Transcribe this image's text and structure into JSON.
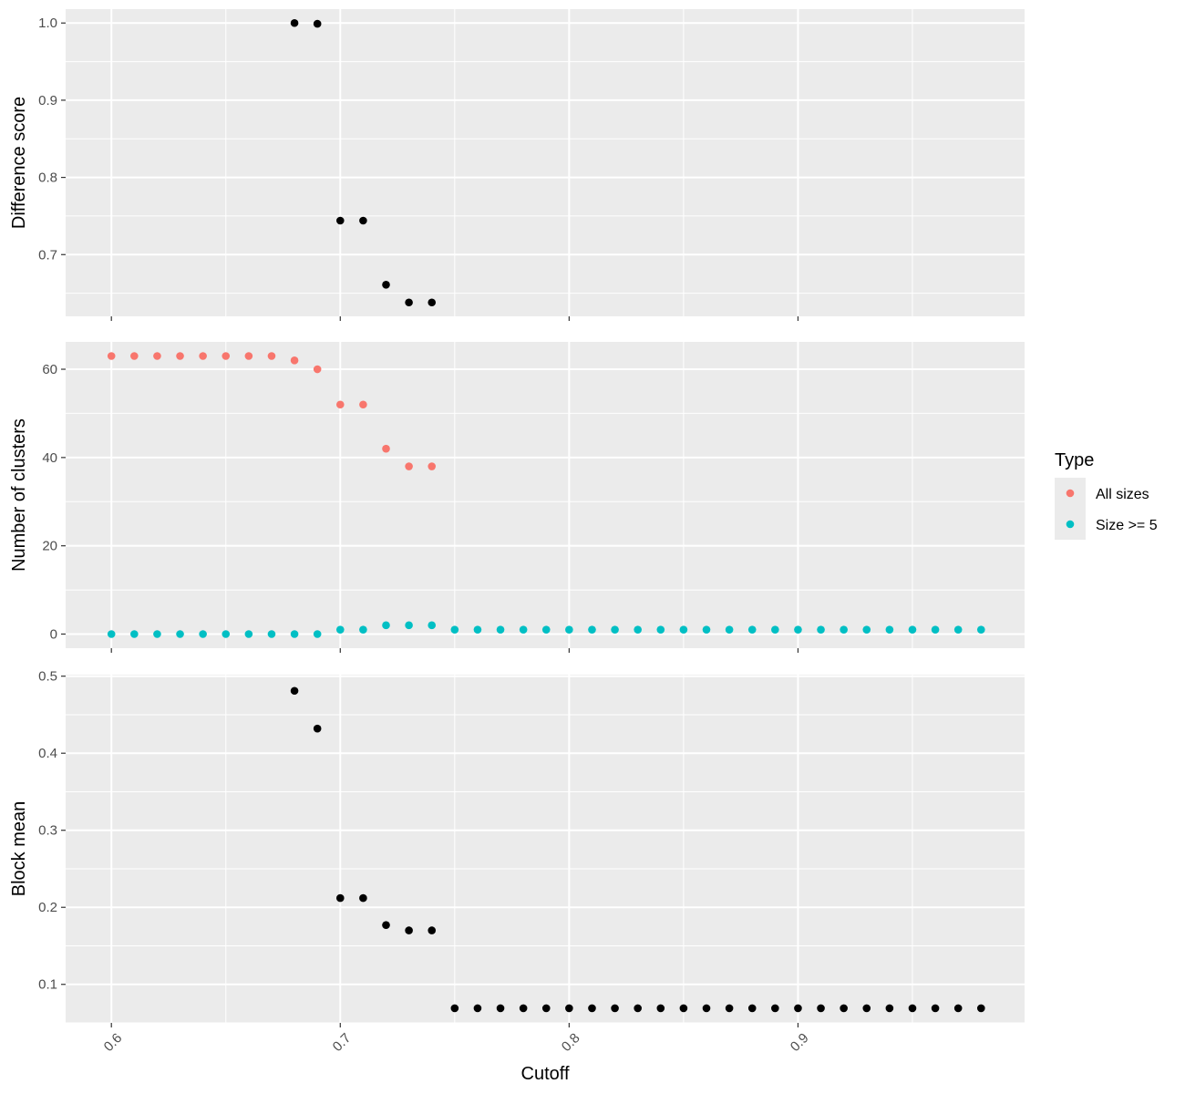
{
  "chart_data": [
    {
      "type": "scatter",
      "ylabel": "Difference score",
      "xlim": [
        0.58,
        0.999
      ],
      "ylim": [
        0.62,
        1.018
      ],
      "yticks": [
        0.7,
        0.8,
        0.9,
        1.0
      ],
      "ytick_labels": [
        "0.7",
        "0.8",
        "0.9",
        "1.0"
      ],
      "grid": true,
      "series": [
        {
          "color": "#000000",
          "x": [
            0.68,
            0.69,
            0.7,
            0.71,
            0.72,
            0.73,
            0.74
          ],
          "y": [
            1.0,
            0.999,
            0.744,
            0.744,
            0.661,
            0.638,
            0.638
          ]
        }
      ]
    },
    {
      "type": "scatter",
      "ylabel": "Number of clusters",
      "xlim": [
        0.58,
        0.999
      ],
      "ylim": [
        -3.2,
        66.2
      ],
      "yticks": [
        0,
        20,
        40,
        60
      ],
      "ytick_labels": [
        "0",
        "20",
        "40",
        "60"
      ],
      "grid": true,
      "legend": {
        "title": "Type",
        "placement": "right",
        "entries": [
          {
            "label": "All sizes",
            "color": "#F8766D"
          },
          {
            "label": "Size >= 5",
            "color": "#00BFC4"
          }
        ]
      },
      "series": [
        {
          "name": "All sizes",
          "color": "#F8766D",
          "x": [
            0.6,
            0.61,
            0.62,
            0.63,
            0.64,
            0.65,
            0.66,
            0.67,
            0.68,
            0.69,
            0.7,
            0.71,
            0.72,
            0.73,
            0.74
          ],
          "y": [
            63,
            63,
            63,
            63,
            63,
            63,
            63,
            63,
            62,
            60,
            52,
            52,
            42,
            38,
            38
          ]
        },
        {
          "name": "Size >= 5",
          "color": "#00BFC4",
          "x": [
            0.6,
            0.61,
            0.62,
            0.63,
            0.64,
            0.65,
            0.66,
            0.67,
            0.68,
            0.69,
            0.7,
            0.71,
            0.72,
            0.73,
            0.74,
            0.75,
            0.76,
            0.77,
            0.78,
            0.79,
            0.8,
            0.81,
            0.82,
            0.83,
            0.84,
            0.85,
            0.86,
            0.87,
            0.88,
            0.89,
            0.9,
            0.91,
            0.92,
            0.93,
            0.94,
            0.95,
            0.96,
            0.97,
            0.98
          ],
          "y": [
            0,
            0,
            0,
            0,
            0,
            0,
            0,
            0,
            0,
            0,
            1,
            1,
            2,
            2,
            2,
            1,
            1,
            1,
            1,
            1,
            1,
            1,
            1,
            1,
            1,
            1,
            1,
            1,
            1,
            1,
            1,
            1,
            1,
            1,
            1,
            1,
            1,
            1,
            1
          ]
        }
      ]
    },
    {
      "type": "scatter",
      "ylabel": "Block mean",
      "xlabel": "Cutoff",
      "xlim": [
        0.58,
        0.999
      ],
      "ylim": [
        0.05,
        0.502
      ],
      "yticks": [
        0.1,
        0.2,
        0.3,
        0.4,
        0.5
      ],
      "ytick_labels": [
        "0.1",
        "0.2",
        "0.3",
        "0.4",
        "0.5"
      ],
      "xticks": [
        0.6,
        0.7,
        0.8,
        0.9
      ],
      "xtick_labels": [
        "0.6",
        "0.7",
        "0.8",
        "0.9"
      ],
      "grid": true,
      "series": [
        {
          "color": "#000000",
          "x": [
            0.68,
            0.69,
            0.7,
            0.71,
            0.72,
            0.73,
            0.74,
            0.75,
            0.76,
            0.77,
            0.78,
            0.79,
            0.8,
            0.81,
            0.82,
            0.83,
            0.84,
            0.85,
            0.86,
            0.87,
            0.88,
            0.89,
            0.9,
            0.91,
            0.92,
            0.93,
            0.94,
            0.95,
            0.96,
            0.97,
            0.98
          ],
          "y": [
            0.481,
            0.432,
            0.212,
            0.212,
            0.177,
            0.17,
            0.17,
            0.069,
            0.069,
            0.069,
            0.069,
            0.069,
            0.069,
            0.069,
            0.069,
            0.069,
            0.069,
            0.069,
            0.069,
            0.069,
            0.069,
            0.069,
            0.069,
            0.069,
            0.069,
            0.069,
            0.069,
            0.069,
            0.069,
            0.069,
            0.069
          ]
        }
      ]
    }
  ]
}
